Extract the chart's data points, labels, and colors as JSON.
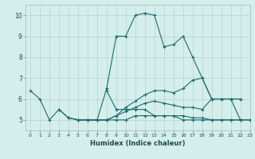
{
  "xlabel": "Humidex (Indice chaleur)",
  "xlim": [
    -0.5,
    23
  ],
  "ylim": [
    4.5,
    10.5
  ],
  "xticks": [
    0,
    1,
    2,
    3,
    4,
    5,
    6,
    7,
    8,
    9,
    10,
    11,
    12,
    13,
    14,
    15,
    16,
    17,
    18,
    19,
    20,
    21,
    22,
    23
  ],
  "yticks": [
    5,
    6,
    7,
    8,
    9,
    10
  ],
  "background_color": "#d4eeeb",
  "line_color": "#1e6b6b",
  "grid_color": "#b8d8d8",
  "lines": [
    [
      6.4,
      6.0,
      5.0,
      5.5,
      5.1,
      5.0,
      5.0,
      5.0,
      6.5,
      9.0,
      9.0,
      10.0,
      10.1,
      10.0,
      8.5,
      8.6,
      9.0,
      8.0,
      7.0,
      6.0,
      6.0,
      6.0,
      5.0,
      null
    ],
    [
      null,
      null,
      null,
      5.5,
      5.1,
      5.0,
      5.0,
      5.0,
      5.0,
      5.0,
      5.0,
      5.2,
      5.2,
      5.2,
      5.2,
      5.2,
      5.0,
      5.0,
      5.0,
      5.0,
      5.0,
      5.0,
      5.0,
      5.0
    ],
    [
      null,
      null,
      null,
      null,
      5.1,
      5.0,
      5.0,
      5.0,
      5.0,
      5.2,
      5.4,
      5.6,
      5.8,
      5.9,
      5.8,
      5.7,
      5.6,
      5.6,
      5.5,
      6.0,
      6.0,
      6.0,
      6.0,
      null
    ],
    [
      null,
      null,
      null,
      null,
      null,
      5.0,
      5.0,
      5.0,
      5.0,
      5.2,
      5.6,
      5.9,
      6.2,
      6.4,
      6.4,
      6.3,
      6.5,
      6.9,
      7.0,
      6.0,
      6.0,
      6.0,
      6.0,
      null
    ],
    [
      null,
      null,
      null,
      null,
      null,
      null,
      null,
      null,
      6.4,
      5.5,
      5.5,
      5.5,
      5.5,
      5.2,
      5.2,
      5.2,
      5.2,
      5.1,
      5.1,
      5.0,
      5.0,
      5.0,
      5.0,
      5.0
    ]
  ]
}
